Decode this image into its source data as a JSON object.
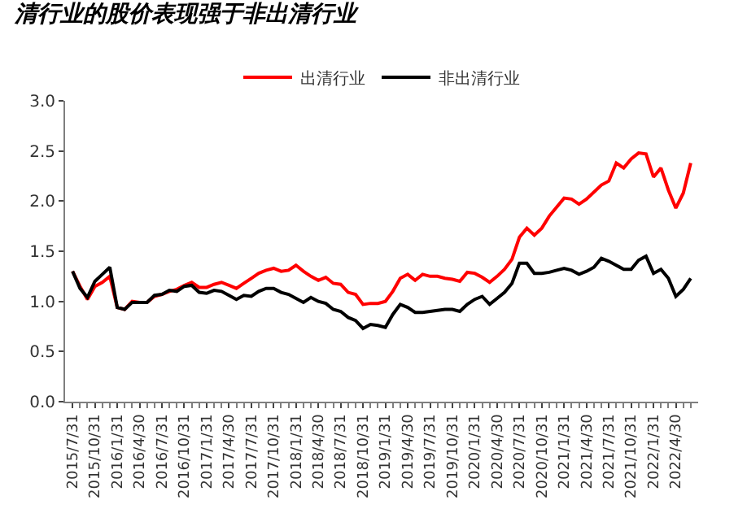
{
  "chart_data": {
    "type": "line",
    "title": "清行业的股价表现强于非出清行业",
    "categories": [
      "2015/7/31",
      null,
      null,
      "2015/10/31",
      null,
      null,
      "2016/1/31",
      null,
      null,
      "2016/4/30",
      null,
      null,
      "2016/7/31",
      null,
      null,
      "2016/10/31",
      null,
      null,
      "2017/1/31",
      null,
      null,
      "2017/4/30",
      null,
      null,
      "2017/7/31",
      null,
      null,
      "2017/10/31",
      null,
      null,
      "2018/1/31",
      null,
      null,
      "2018/4/30",
      null,
      null,
      "2018/7/31",
      null,
      null,
      "2018/10/31",
      null,
      null,
      "2019/1/31",
      null,
      null,
      "2019/4/30",
      null,
      null,
      "2019/7/31",
      null,
      null,
      "2019/10/31",
      null,
      null,
      "2020/1/31",
      null,
      null,
      "2020/4/30",
      null,
      null,
      "2020/7/31",
      null,
      null,
      "2020/10/31",
      null,
      null,
      "2021/1/31",
      null,
      null,
      "2021/4/30",
      null,
      null,
      "2021/7/31",
      null,
      null,
      "2021/10/31",
      null,
      null,
      "2022/1/31",
      null,
      null,
      "2022/4/30",
      null,
      null
    ],
    "series": [
      {
        "name": "出清行业",
        "color": "#ff0000",
        "values": [
          1.3,
          1.15,
          1.02,
          1.15,
          1.19,
          1.25,
          0.94,
          0.92,
          1.0,
          0.99,
          0.99,
          1.05,
          1.07,
          1.1,
          1.12,
          1.16,
          1.19,
          1.14,
          1.14,
          1.17,
          1.19,
          1.16,
          1.13,
          1.18,
          1.23,
          1.28,
          1.31,
          1.33,
          1.3,
          1.31,
          1.36,
          1.3,
          1.25,
          1.21,
          1.24,
          1.18,
          1.17,
          1.09,
          1.07,
          0.97,
          0.98,
          0.98,
          1.0,
          1.1,
          1.23,
          1.27,
          1.21,
          1.27,
          1.25,
          1.25,
          1.23,
          1.22,
          1.2,
          1.29,
          1.28,
          1.24,
          1.19,
          1.25,
          1.32,
          1.42,
          1.64,
          1.73,
          1.66,
          1.73,
          1.85,
          1.94,
          2.03,
          2.02,
          1.97,
          2.02,
          2.09,
          2.16,
          2.2,
          2.38,
          2.33,
          2.42,
          2.48,
          2.47,
          2.24,
          2.33,
          2.11,
          1.93,
          2.08,
          2.38
        ]
      },
      {
        "name": "非出清行业",
        "color": "#000000",
        "values": [
          1.3,
          1.13,
          1.04,
          1.2,
          1.27,
          1.34,
          0.94,
          0.92,
          0.99,
          0.99,
          0.99,
          1.06,
          1.07,
          1.11,
          1.1,
          1.15,
          1.16,
          1.09,
          1.08,
          1.11,
          1.1,
          1.06,
          1.02,
          1.06,
          1.05,
          1.1,
          1.13,
          1.13,
          1.09,
          1.07,
          1.03,
          0.99,
          1.04,
          1.0,
          0.98,
          0.92,
          0.9,
          0.84,
          0.81,
          0.73,
          0.77,
          0.76,
          0.74,
          0.87,
          0.97,
          0.94,
          0.89,
          0.89,
          0.9,
          0.91,
          0.92,
          0.92,
          0.9,
          0.97,
          1.02,
          1.05,
          0.97,
          1.03,
          1.09,
          1.18,
          1.38,
          1.38,
          1.28,
          1.28,
          1.29,
          1.31,
          1.33,
          1.31,
          1.27,
          1.3,
          1.34,
          1.43,
          1.4,
          1.36,
          1.32,
          1.32,
          1.41,
          1.45,
          1.28,
          1.32,
          1.23,
          1.05,
          1.12,
          1.23
        ]
      }
    ],
    "ylim": [
      0,
      3.0
    ],
    "yticks": [
      {
        "value": 0,
        "label": "0.0"
      },
      {
        "value": 0.5,
        "label": "0.5"
      },
      {
        "value": 1,
        "label": "1.0"
      },
      {
        "value": 1.5,
        "label": "1.5"
      },
      {
        "value": 2,
        "label": "2.0"
      },
      {
        "value": 2.5,
        "label": "2.5"
      },
      {
        "value": 3,
        "label": "3.0"
      }
    ],
    "legend": "top",
    "marker": "none",
    "line_style": "solid"
  }
}
